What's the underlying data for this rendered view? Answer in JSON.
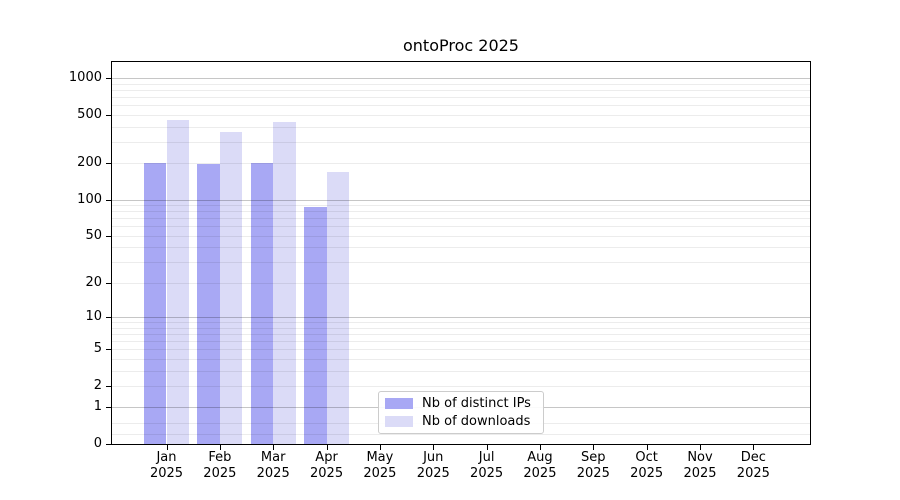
{
  "chart_data": {
    "type": "bar",
    "title": "ontoProc 2025",
    "x_tick_months": [
      "Jan",
      "Feb",
      "Mar",
      "Apr",
      "May",
      "Jun",
      "Jul",
      "Aug",
      "Sep",
      "Oct",
      "Nov",
      "Dec"
    ],
    "x_tick_year": "2025",
    "y_ticks": [
      0,
      1,
      2,
      5,
      10,
      20,
      50,
      100,
      200,
      500,
      1000
    ],
    "y_scale": "log(1+y)",
    "ylim": [
      0,
      1360
    ],
    "grid": true,
    "legend_position": "inside lower center-left",
    "series": [
      {
        "key": "distinct-ips",
        "name": "Nb of distinct IPs",
        "color": "#a8a8f4",
        "values": [
          200,
          197,
          200,
          87,
          0,
          0,
          0,
          0,
          0,
          0,
          0,
          0
        ]
      },
      {
        "key": "downloads",
        "name": "Nb of downloads",
        "color": "#dbdbf7",
        "values": [
          450,
          360,
          435,
          170,
          0,
          0,
          0,
          0,
          0,
          0,
          0,
          0
        ]
      }
    ]
  },
  "colors": {
    "grid_major": "#c6c6c6",
    "grid_minor": "#ececec",
    "spine": "#000000",
    "legend_border": "#cccccc",
    "text": "#000000",
    "background": "#ffffff"
  }
}
